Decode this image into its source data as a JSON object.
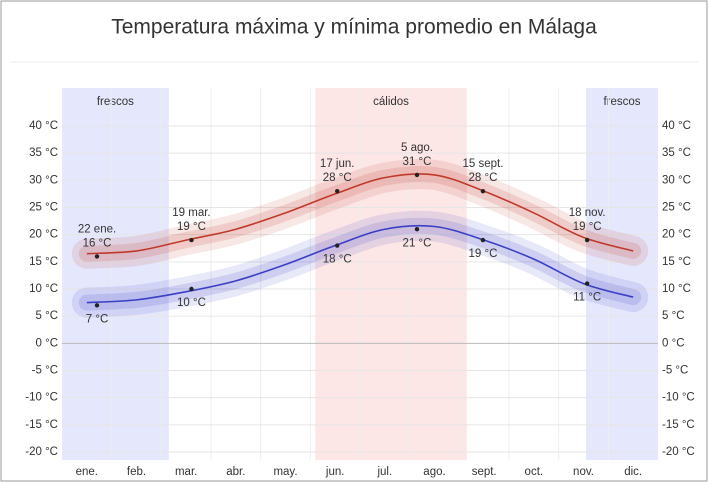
{
  "chart_data": {
    "type": "line",
    "title": "Temperatura máxima y mínima promedio en Málaga",
    "categories": [
      "ene.",
      "feb.",
      "mar.",
      "abr.",
      "may.",
      "jun.",
      "jul.",
      "ago.",
      "sept.",
      "oct.",
      "nov.",
      "dic."
    ],
    "series": [
      {
        "name": "máxima",
        "color": "#c0392b",
        "values": [
          16.5,
          17,
          19,
          21,
          24,
          27.5,
          30.5,
          31,
          28,
          24,
          19.5,
          17
        ]
      },
      {
        "name": "mínima",
        "color": "#3a3fc4",
        "values": [
          7.5,
          8,
          9.5,
          11.5,
          14.5,
          18,
          21,
          21.5,
          19,
          15.5,
          11,
          8.5
        ]
      }
    ],
    "ylim": [
      -20,
      40
    ],
    "yticks": [
      {
        "value": 40,
        "label": "40 °C"
      },
      {
        "value": 35,
        "label": "35 °C"
      },
      {
        "value": 30,
        "label": "30 °C"
      },
      {
        "value": 25,
        "label": "25 °C"
      },
      {
        "value": 20,
        "label": "20 °C"
      },
      {
        "value": 15,
        "label": "15 °C"
      },
      {
        "value": 10,
        "label": "10 °C"
      },
      {
        "value": 5,
        "label": "5 °C"
      },
      {
        "value": 0,
        "label": "0 °C"
      },
      {
        "value": -5,
        "label": "-5 °C"
      },
      {
        "value": -10,
        "label": "-10 °C"
      },
      {
        "value": -15,
        "label": "-15 °C"
      },
      {
        "value": -20,
        "label": "-20 °C"
      }
    ],
    "grid": true,
    "seasons": [
      {
        "label": "frescos",
        "start": 0,
        "end": 2.15,
        "color": "#dfe1fb"
      },
      {
        "label": "cálidos",
        "start": 5.1,
        "end": 8.15,
        "color": "#fbe0e0"
      },
      {
        "label": "frescos",
        "start": 10.55,
        "end": 12,
        "color": "#dfe1fb"
      }
    ],
    "annotations": [
      {
        "date": "22 ene.",
        "max": 16,
        "max_label": "16 °C",
        "min": 7,
        "min_label": "7 °C"
      },
      {
        "date": "19 mar.",
        "max": 19,
        "max_label": "19 °C",
        "min": 10,
        "min_label": "10 °C"
      },
      {
        "date": "17 jun.",
        "max": 28,
        "max_label": "28 °C",
        "min": 18,
        "min_label": "18 °C"
      },
      {
        "date": "5 ago.",
        "max": 31,
        "max_label": "31 °C",
        "min": 21,
        "min_label": "21 °C"
      },
      {
        "date": "15 sept.",
        "max": 28,
        "max_label": "28 °C",
        "min": 19,
        "min_label": "19 °C"
      },
      {
        "date": "18 nov.",
        "max": 19,
        "max_label": "19 °C",
        "min": 11,
        "min_label": "11 °C"
      }
    ]
  }
}
